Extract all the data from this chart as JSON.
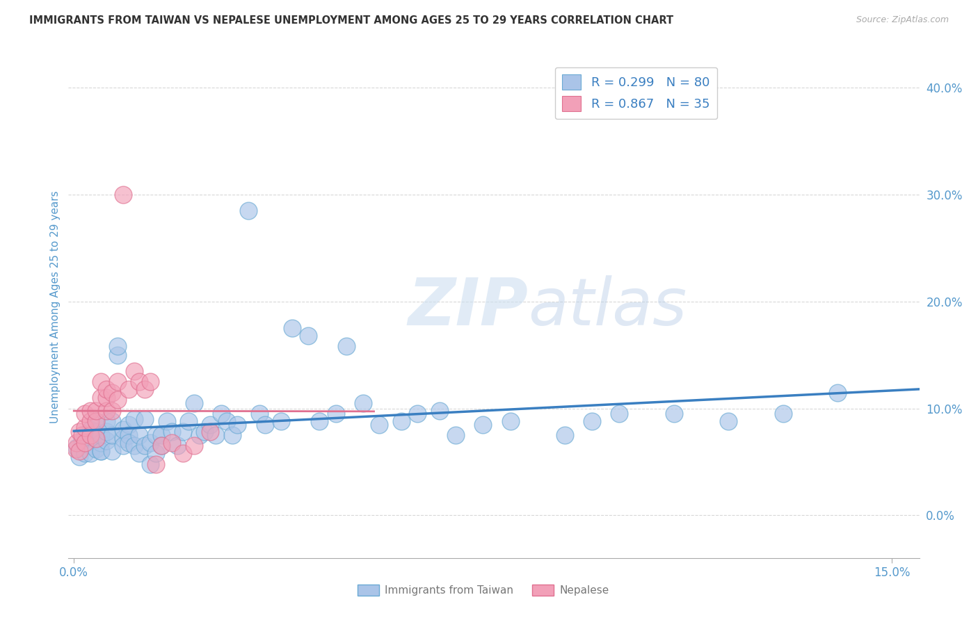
{
  "title": "IMMIGRANTS FROM TAIWAN VS NEPALESE UNEMPLOYMENT AMONG AGES 25 TO 29 YEARS CORRELATION CHART",
  "source": "Source: ZipAtlas.com",
  "ylabel": "Unemployment Among Ages 25 to 29 years",
  "xlim": [
    -0.001,
    0.155
  ],
  "ylim": [
    -0.04,
    0.43
  ],
  "xtick_positions": [
    0.0,
    0.15
  ],
  "xtick_labels": [
    "0.0%",
    "15.0%"
  ],
  "ytick_positions": [
    0.0,
    0.1,
    0.2,
    0.3,
    0.4
  ],
  "ytick_labels": [
    "0.0%",
    "10.0%",
    "20.0%",
    "30.0%",
    "40.0%"
  ],
  "taiwan_color": "#aac4e8",
  "nepal_color": "#f2a0b8",
  "taiwan_edge_color": "#6aaad4",
  "nepal_edge_color": "#e07090",
  "taiwan_line_color": "#3a7fc1",
  "nepal_line_color": "#e07090",
  "taiwan_R": 0.299,
  "taiwan_N": 80,
  "nepal_R": 0.867,
  "nepal_N": 35,
  "taiwan_scatter_x": [
    0.0005,
    0.001,
    0.0015,
    0.002,
    0.002,
    0.003,
    0.003,
    0.003,
    0.004,
    0.004,
    0.004,
    0.004,
    0.005,
    0.005,
    0.005,
    0.005,
    0.006,
    0.006,
    0.006,
    0.007,
    0.007,
    0.007,
    0.008,
    0.008,
    0.009,
    0.009,
    0.009,
    0.01,
    0.01,
    0.01,
    0.011,
    0.011,
    0.012,
    0.012,
    0.013,
    0.013,
    0.014,
    0.014,
    0.015,
    0.015,
    0.016,
    0.016,
    0.017,
    0.018,
    0.019,
    0.02,
    0.021,
    0.022,
    0.023,
    0.024,
    0.025,
    0.026,
    0.027,
    0.028,
    0.029,
    0.03,
    0.032,
    0.034,
    0.035,
    0.038,
    0.04,
    0.043,
    0.045,
    0.048,
    0.05,
    0.053,
    0.056,
    0.06,
    0.063,
    0.067,
    0.07,
    0.075,
    0.08,
    0.09,
    0.095,
    0.1,
    0.11,
    0.12,
    0.13,
    0.14
  ],
  "taiwan_scatter_y": [
    0.063,
    0.055,
    0.07,
    0.058,
    0.075,
    0.065,
    0.058,
    0.08,
    0.062,
    0.072,
    0.078,
    0.088,
    0.06,
    0.068,
    0.075,
    0.06,
    0.07,
    0.078,
    0.088,
    0.06,
    0.075,
    0.088,
    0.15,
    0.158,
    0.072,
    0.065,
    0.08,
    0.085,
    0.075,
    0.068,
    0.065,
    0.09,
    0.058,
    0.075,
    0.065,
    0.09,
    0.048,
    0.068,
    0.058,
    0.075,
    0.075,
    0.065,
    0.088,
    0.078,
    0.065,
    0.078,
    0.088,
    0.105,
    0.075,
    0.078,
    0.085,
    0.075,
    0.095,
    0.088,
    0.075,
    0.085,
    0.285,
    0.095,
    0.085,
    0.088,
    0.175,
    0.168,
    0.088,
    0.095,
    0.158,
    0.105,
    0.085,
    0.088,
    0.095,
    0.098,
    0.075,
    0.085,
    0.088,
    0.075,
    0.088,
    0.095,
    0.095,
    0.088,
    0.095,
    0.115
  ],
  "nepal_scatter_x": [
    0.0003,
    0.0005,
    0.001,
    0.001,
    0.0015,
    0.002,
    0.002,
    0.002,
    0.003,
    0.003,
    0.003,
    0.004,
    0.004,
    0.004,
    0.005,
    0.005,
    0.006,
    0.006,
    0.006,
    0.007,
    0.007,
    0.008,
    0.008,
    0.009,
    0.01,
    0.011,
    0.012,
    0.013,
    0.014,
    0.015,
    0.016,
    0.018,
    0.02,
    0.022,
    0.025
  ],
  "nepal_scatter_y": [
    0.062,
    0.068,
    0.06,
    0.078,
    0.075,
    0.068,
    0.082,
    0.095,
    0.075,
    0.088,
    0.098,
    0.072,
    0.088,
    0.098,
    0.11,
    0.125,
    0.098,
    0.11,
    0.118,
    0.098,
    0.115,
    0.108,
    0.125,
    0.3,
    0.118,
    0.135,
    0.125,
    0.118,
    0.125,
    0.048,
    0.065,
    0.068,
    0.058,
    0.065,
    0.078
  ],
  "watermark_zip": "ZIP",
  "watermark_atlas": "atlas",
  "background_color": "#ffffff",
  "grid_color": "#d8d8d8",
  "title_color": "#333333",
  "axis_label_color": "#5599cc",
  "tick_color": "#5599cc",
  "legend_text_color": "#3a7fc1"
}
